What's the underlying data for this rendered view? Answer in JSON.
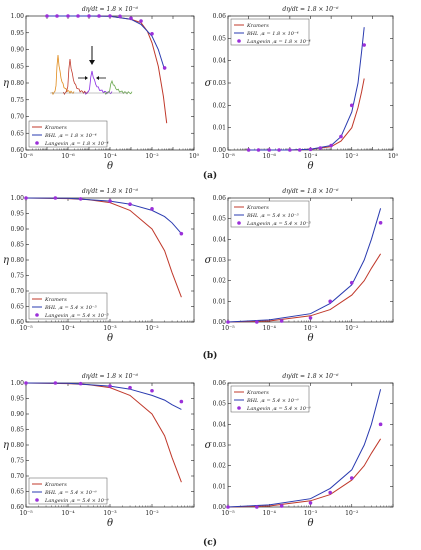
{
  "row_labels": [
    "(a)",
    "(b)",
    "(c)"
  ],
  "colors": {
    "kramers": "#c0392b",
    "bhl": "#2a3bb0",
    "langevin": "#9b30d9",
    "inset": [
      "#e08a1a",
      "#c0392b",
      "#8a2be2",
      "#6aa84f"
    ]
  },
  "chart_data": [
    {
      "type": "line",
      "row": 0,
      "col": 0,
      "title": "dη/dt = 1.8 × 10⁻⁶",
      "xlabel": "θ",
      "ylabel": "η",
      "xscale": "log",
      "xlim": [
        1e-08,
        1
      ],
      "ylim": [
        0.6,
        1.0
      ],
      "xticks": [
        "10⁻⁸",
        "10⁻⁶",
        "10⁻⁴",
        "10⁻²",
        "10⁰"
      ],
      "yticks": [
        "0.60",
        "0.65",
        "0.70",
        "0.75",
        "0.80",
        "0.85",
        "0.90",
        "0.95",
        "1.00"
      ],
      "legend": {
        "position": "bottom-left"
      },
      "inset": true,
      "series": [
        {
          "name": "Kramers",
          "kind": "line",
          "color": "#c0392b",
          "x": [
            1e-07,
            1e-06,
            1e-05,
            0.0001,
            0.001,
            0.003,
            0.006,
            0.01,
            0.02,
            0.035,
            0.05
          ],
          "y": [
            1.0,
            1.0,
            1.0,
            0.999,
            0.99,
            0.98,
            0.955,
            0.92,
            0.85,
            0.76,
            0.68
          ]
        },
        {
          "name": "BHL ,α = 1.8 × 10⁻⁴",
          "kind": "line",
          "color": "#2a3bb0",
          "x": [
            1e-07,
            1e-06,
            1e-05,
            0.0001,
            0.001,
            0.003,
            0.01,
            0.02,
            0.04
          ],
          "y": [
            1.0,
            1.0,
            1.0,
            0.999,
            0.99,
            0.975,
            0.94,
            0.9,
            0.84
          ]
        },
        {
          "name": "Langevin ,α = 1.8 × 10⁻⁴",
          "kind": "scatter",
          "color": "#9b30d9",
          "x": [
            1e-07,
            3e-07,
            1e-06,
            3e-06,
            1e-05,
            3e-05,
            0.0001,
            0.0003,
            0.001,
            0.003,
            0.01,
            0.04
          ],
          "y": [
            1.0,
            1.0,
            1.0,
            1.0,
            1.0,
            1.0,
            1.0,
            0.999,
            0.993,
            0.985,
            0.947,
            0.845
          ]
        }
      ]
    },
    {
      "type": "line",
      "row": 0,
      "col": 1,
      "title": "dη/dt = 1.8 × 10⁻⁶",
      "xlabel": "θ",
      "ylabel": "σ",
      "xscale": "log",
      "xlim": [
        1e-08,
        1
      ],
      "ylim": [
        0,
        0.06
      ],
      "xticks": [
        "10⁻⁸",
        "10⁻⁶",
        "10⁻⁴",
        "10⁻²",
        "10⁰"
      ],
      "yticks": [
        "0.00",
        "0.01",
        "0.02",
        "0.03",
        "0.04",
        "0.05",
        "0.06"
      ],
      "legend": {
        "position": "top-left"
      },
      "series": [
        {
          "name": "Kramers",
          "kind": "line",
          "color": "#c0392b",
          "x": [
            1e-07,
            1e-05,
            0.0001,
            0.001,
            0.003,
            0.01,
            0.02,
            0.03,
            0.04
          ],
          "y": [
            0,
            0,
            0.0003,
            0.0015,
            0.004,
            0.01,
            0.019,
            0.026,
            0.032
          ]
        },
        {
          "name": "BHL ,α = 1.8 × 10⁻⁴",
          "kind": "line",
          "color": "#2a3bb0",
          "x": [
            1e-07,
            1e-05,
            0.0001,
            0.001,
            0.003,
            0.01,
            0.02,
            0.03,
            0.04
          ],
          "y": [
            0,
            0,
            0.0003,
            0.002,
            0.006,
            0.017,
            0.03,
            0.044,
            0.055
          ]
        },
        {
          "name": "Langevin ,α = 1.8 × 10⁻⁴",
          "kind": "scatter",
          "color": "#9b30d9",
          "x": [
            1e-07,
            3e-07,
            1e-06,
            3e-06,
            1e-05,
            3e-05,
            0.0001,
            0.0003,
            0.001,
            0.003,
            0.01,
            0.04
          ],
          "y": [
            0,
            0,
            0,
            0,
            0,
            0,
            0.0003,
            0.0009,
            0.002,
            0.006,
            0.02,
            0.047
          ]
        }
      ]
    },
    {
      "type": "line",
      "row": 1,
      "col": 0,
      "title": "dη/dt = 1.8 × 10⁻⁶",
      "xlabel": "θ",
      "ylabel": "η",
      "xscale": "log",
      "xlim": [
        1e-05,
        0.1
      ],
      "ylim": [
        0.6,
        1.0
      ],
      "xticks": [
        "10⁻⁵",
        "10⁻⁴",
        "10⁻³",
        "10⁻²"
      ],
      "yticks": [
        "0.60",
        "0.65",
        "0.70",
        "0.75",
        "0.80",
        "0.85",
        "0.90",
        "0.95",
        "1.00"
      ],
      "legend": {
        "position": "bottom-left"
      },
      "series": [
        {
          "name": "Kramers",
          "kind": "line",
          "color": "#c0392b",
          "x": [
            1e-05,
            0.0001,
            0.0003,
            0.001,
            0.003,
            0.01,
            0.02,
            0.03,
            0.05
          ],
          "y": [
            1.0,
            0.998,
            0.995,
            0.985,
            0.96,
            0.9,
            0.83,
            0.76,
            0.68
          ]
        },
        {
          "name": "BHL ,α = 5.4 × 10⁻⁵",
          "kind": "line",
          "color": "#2a3bb0",
          "x": [
            1e-05,
            0.0001,
            0.001,
            0.003,
            0.01,
            0.02,
            0.03,
            0.05
          ],
          "y": [
            1.0,
            0.999,
            0.99,
            0.98,
            0.96,
            0.94,
            0.92,
            0.885
          ]
        },
        {
          "name": "Langevin ,α = 5.4 × 10⁻⁵",
          "kind": "scatter",
          "color": "#9b30d9",
          "x": [
            1e-05,
            5e-05,
            0.0002,
            0.001,
            0.003,
            0.01,
            0.05
          ],
          "y": [
            1.0,
            1.0,
            0.997,
            0.99,
            0.98,
            0.965,
            0.885
          ]
        }
      ]
    },
    {
      "type": "line",
      "row": 1,
      "col": 1,
      "title": "dη/dt = 1.8 × 10⁻⁶",
      "xlabel": "θ",
      "ylabel": "σ",
      "xscale": "log",
      "xlim": [
        1e-05,
        0.1
      ],
      "ylim": [
        0,
        0.06
      ],
      "xticks": [
        "10⁻⁵",
        "10⁻⁴",
        "10⁻³",
        "10⁻²"
      ],
      "yticks": [
        "0.00",
        "0.01",
        "0.02",
        "0.03",
        "0.04",
        "0.05",
        "0.06"
      ],
      "legend": {
        "position": "top-left"
      },
      "series": [
        {
          "name": "Kramers",
          "kind": "line",
          "color": "#c0392b",
          "x": [
            1e-05,
            0.0001,
            0.001,
            0.003,
            0.01,
            0.02,
            0.03,
            0.05
          ],
          "y": [
            0,
            0.0005,
            0.003,
            0.006,
            0.013,
            0.02,
            0.026,
            0.033
          ]
        },
        {
          "name": "BHL ,α = 5.4 × 10⁻⁵",
          "kind": "line",
          "color": "#2a3bb0",
          "x": [
            1e-05,
            0.0001,
            0.001,
            0.003,
            0.01,
            0.02,
            0.03,
            0.05
          ],
          "y": [
            0,
            0.001,
            0.004,
            0.009,
            0.018,
            0.03,
            0.04,
            0.055
          ]
        },
        {
          "name": "Langevin ,α = 5.4 × 10⁻⁵",
          "kind": "scatter",
          "color": "#9b30d9",
          "x": [
            1e-05,
            5e-05,
            0.0002,
            0.001,
            0.003,
            0.01,
            0.05
          ],
          "y": [
            0,
            0,
            0.0005,
            0.002,
            0.01,
            0.019,
            0.048
          ]
        }
      ]
    },
    {
      "type": "line",
      "row": 2,
      "col": 0,
      "title": "dη/dt = 1.8 × 10⁻⁶",
      "xlabel": "θ",
      "ylabel": "η",
      "xscale": "log",
      "xlim": [
        1e-05,
        0.1
      ],
      "ylim": [
        0.6,
        1.0
      ],
      "xticks": [
        "10⁻⁵",
        "10⁻⁴",
        "10⁻³",
        "10⁻²"
      ],
      "yticks": [
        "0.60",
        "0.65",
        "0.70",
        "0.75",
        "0.80",
        "0.85",
        "0.90",
        "0.95",
        "1.00"
      ],
      "legend": {
        "position": "bottom-left"
      },
      "series": [
        {
          "name": "Kramers",
          "kind": "line",
          "color": "#c0392b",
          "x": [
            1e-05,
            0.0001,
            0.0003,
            0.001,
            0.003,
            0.01,
            0.02,
            0.03,
            0.05
          ],
          "y": [
            1.0,
            0.998,
            0.995,
            0.985,
            0.96,
            0.9,
            0.83,
            0.76,
            0.68
          ]
        },
        {
          "name": "BHL ,α = 5.4 × 10⁻⁶",
          "kind": "line",
          "color": "#2a3bb0",
          "x": [
            1e-05,
            0.0001,
            0.001,
            0.003,
            0.01,
            0.02,
            0.03,
            0.05
          ],
          "y": [
            1.0,
            0.999,
            0.99,
            0.98,
            0.96,
            0.945,
            0.93,
            0.915
          ]
        },
        {
          "name": "Langevin ,α = 5.4 × 10⁻⁶",
          "kind": "scatter",
          "color": "#9b30d9",
          "x": [
            1e-05,
            5e-05,
            0.0002,
            0.001,
            0.003,
            0.01,
            0.05
          ],
          "y": [
            1.0,
            1.0,
            0.998,
            0.99,
            0.985,
            0.975,
            0.94
          ]
        }
      ]
    },
    {
      "type": "line",
      "row": 2,
      "col": 1,
      "title": "dη/dt = 1.8 × 10⁻⁶",
      "xlabel": "θ",
      "ylabel": "σ",
      "xscale": "log",
      "xlim": [
        1e-05,
        0.1
      ],
      "ylim": [
        0,
        0.06
      ],
      "xticks": [
        "10⁻⁵",
        "10⁻⁴",
        "10⁻³",
        "10⁻²"
      ],
      "yticks": [
        "0.00",
        "0.01",
        "0.02",
        "0.03",
        "0.04",
        "0.05",
        "0.06"
      ],
      "legend": {
        "position": "top-left"
      },
      "series": [
        {
          "name": "Kramers",
          "kind": "line",
          "color": "#c0392b",
          "x": [
            1e-05,
            0.0001,
            0.001,
            0.003,
            0.01,
            0.02,
            0.03,
            0.05
          ],
          "y": [
            0,
            0.0005,
            0.003,
            0.006,
            0.013,
            0.02,
            0.026,
            0.033
          ]
        },
        {
          "name": "BHL ,α = 5.4 × 10⁻⁶",
          "kind": "line",
          "color": "#2a3bb0",
          "x": [
            1e-05,
            0.0001,
            0.001,
            0.003,
            0.01,
            0.02,
            0.03,
            0.05
          ],
          "y": [
            0,
            0.001,
            0.004,
            0.009,
            0.018,
            0.03,
            0.04,
            0.057
          ]
        },
        {
          "name": "Langevin ,α = 5.4 × 10⁻⁶",
          "kind": "scatter",
          "color": "#9b30d9",
          "x": [
            1e-05,
            5e-05,
            0.0002,
            0.001,
            0.003,
            0.01,
            0.05
          ],
          "y": [
            0,
            0,
            0.0005,
            0.002,
            0.007,
            0.014,
            0.04
          ]
        }
      ]
    }
  ]
}
